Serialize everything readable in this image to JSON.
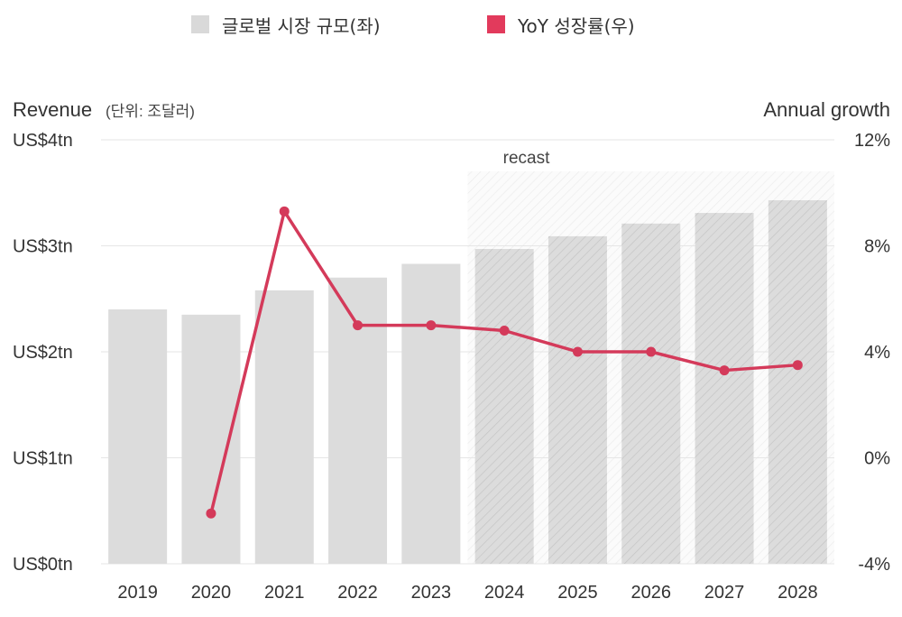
{
  "legend": {
    "bar_label": "글로벌 시장 규모(좌)",
    "line_label": "YoY 성장률(우)"
  },
  "colors": {
    "bar": "#dcdcdc",
    "line": "#d43a5a",
    "grid": "#e6e6e6"
  },
  "chart_data": {
    "type": "bar",
    "categories": [
      "2019",
      "2020",
      "2021",
      "2022",
      "2023",
      "2024",
      "2025",
      "2026",
      "2027",
      "2028"
    ],
    "series": [
      {
        "name": "글로벌 시장 규모(좌)",
        "type": "bar",
        "axis": "left",
        "values": [
          2.4,
          2.35,
          2.58,
          2.7,
          2.83,
          2.97,
          3.09,
          3.21,
          3.31,
          3.43
        ]
      },
      {
        "name": "YoY 성장률(우)",
        "type": "line",
        "axis": "right",
        "values": [
          null,
          -2.1,
          9.3,
          5.0,
          5.0,
          4.8,
          4.0,
          4.0,
          3.3,
          3.5
        ]
      }
    ],
    "left_axis": {
      "title": "Revenue",
      "unit_note": "(단위: 조달러)",
      "ylim": [
        0,
        4
      ],
      "ticks": [
        "US$0tn",
        "US$1tn",
        "US$2tn",
        "US$3tn",
        "US$4tn"
      ]
    },
    "right_axis": {
      "title": "Annual growth",
      "ylim": [
        -4,
        12
      ],
      "ticks": [
        "-4%",
        "0%",
        "4%",
        "8%",
        "12%"
      ]
    },
    "forecast": {
      "label": "recast",
      "from_category": "2024"
    },
    "grid": true,
    "legend_position": "top"
  }
}
